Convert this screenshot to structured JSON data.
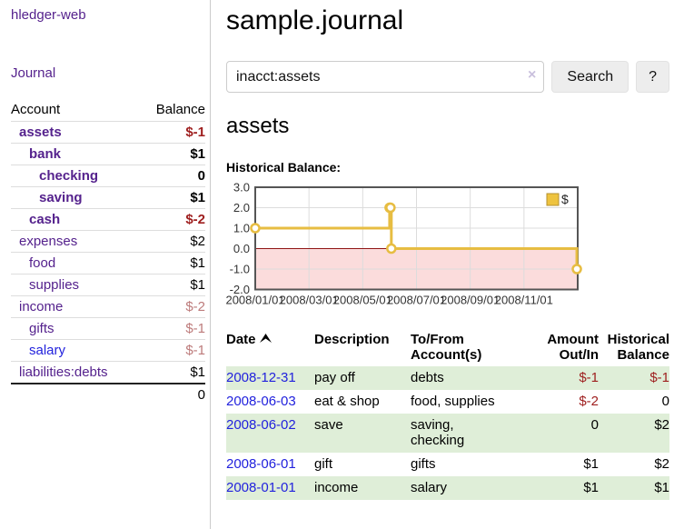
{
  "sidebar": {
    "app_title": "hledger-web",
    "journal_label": "Journal",
    "accounts_table": {
      "headers": [
        "Account",
        "Balance"
      ],
      "rows": [
        {
          "name": "assets",
          "indent": 0,
          "bold": true,
          "balance": "$-1",
          "balance_style": "negative-strong"
        },
        {
          "name": "bank",
          "indent": 1,
          "bold": true,
          "balance": "$1",
          "balance_style": "positive-strong"
        },
        {
          "name": "checking",
          "indent": 2,
          "bold": true,
          "balance": "0",
          "balance_style": "positive-strong"
        },
        {
          "name": "saving",
          "indent": 2,
          "bold": true,
          "balance": "$1",
          "balance_style": "positive-strong"
        },
        {
          "name": "cash",
          "indent": 1,
          "bold": true,
          "balance": "$-2",
          "balance_style": "negative-strong"
        },
        {
          "name": "expenses",
          "indent": 0,
          "bold": false,
          "balance": "$2",
          "balance_style": "positive"
        },
        {
          "name": "food",
          "indent": 1,
          "bold": false,
          "balance": "$1",
          "balance_style": "positive"
        },
        {
          "name": "supplies",
          "indent": 1,
          "bold": false,
          "balance": "$1",
          "balance_style": "positive"
        },
        {
          "name": "income",
          "indent": 0,
          "bold": false,
          "balance": "$-2",
          "balance_style": "negative-muted"
        },
        {
          "name": "gifts",
          "indent": 1,
          "bold": false,
          "balance": "$-1",
          "balance_style": "negative-muted"
        },
        {
          "name": "salary",
          "indent": 1,
          "bold": false,
          "link_color": "blue",
          "balance": "$-1",
          "balance_style": "negative-muted"
        },
        {
          "name": "liabilities:debts",
          "indent": 0,
          "bold": false,
          "balance": "$1",
          "balance_style": "positive"
        }
      ],
      "total": "0"
    }
  },
  "main": {
    "title": "sample.journal",
    "search": {
      "value": "inacct:assets",
      "clear_icon": "×",
      "button_label": "Search",
      "help_label": "?"
    },
    "account_heading": "assets",
    "register_table": {
      "headers": [
        {
          "label": "Date",
          "sortable": true,
          "sort_direction": "ascending",
          "align": "left"
        },
        {
          "label": "Description",
          "align": "left"
        },
        {
          "label": "To/From Account(s)",
          "align": "left"
        },
        {
          "label": "Amount Out/In",
          "align": "right"
        },
        {
          "label": "Historical Balance",
          "align": "right"
        }
      ],
      "rows": [
        {
          "date": "2008-12-31",
          "description": "pay off",
          "accounts": [
            "debts"
          ],
          "accounts_two_lines": false,
          "amount": "$-1",
          "amount_negative": true,
          "balance": "$-1",
          "balance_negative": true
        },
        {
          "date": "2008-06-03",
          "description": "eat & shop",
          "accounts": [
            "food",
            "supplies"
          ],
          "accounts_two_lines": false,
          "amount": "$-2",
          "amount_negative": true,
          "balance": "0",
          "balance_negative": false
        },
        {
          "date": "2008-06-02",
          "description": "save",
          "accounts": [
            "saving",
            "checking"
          ],
          "accounts_two_lines": true,
          "amount": "0",
          "amount_negative": false,
          "balance": "$2",
          "balance_negative": false
        },
        {
          "date": "2008-06-01",
          "description": "gift",
          "accounts": [
            "gifts"
          ],
          "accounts_two_lines": false,
          "amount": "$1",
          "amount_negative": false,
          "balance": "$2",
          "balance_negative": false
        },
        {
          "date": "2008-01-01",
          "description": "income",
          "accounts": [
            "salary"
          ],
          "accounts_two_lines": false,
          "amount": "$1",
          "amount_negative": false,
          "balance": "$1",
          "balance_negative": false
        }
      ]
    }
  },
  "chart_data": {
    "type": "line",
    "title": "Historical Balance:",
    "series": [
      {
        "name": "$",
        "step": true,
        "points": [
          [
            "2008-01-01",
            1
          ],
          [
            "2008-06-01",
            2
          ],
          [
            "2008-06-02",
            2
          ],
          [
            "2008-06-03",
            0
          ],
          [
            "2008-12-31",
            -1
          ]
        ]
      }
    ],
    "x_tick_labels": [
      "2008/01/01",
      "2008/03/01",
      "2008/05/01",
      "2008/07/01",
      "2008/09/01",
      "2008/11/01"
    ],
    "x_tick_months": [
      0,
      2,
      4,
      6,
      8,
      10
    ],
    "x_range_months": [
      0,
      12
    ],
    "y_ticks": [
      3.0,
      2.0,
      1.0,
      0.0,
      -1.0,
      -2.0
    ],
    "ylim": [
      -2,
      3
    ],
    "grid": true,
    "legend": {
      "label": "$",
      "position": "top-right"
    },
    "colors": {
      "line": "#e7bd42",
      "marker_fill": "#ffffff",
      "negative_region": "#fbdcdc",
      "zero_line": "#8f1414",
      "border": "#555555",
      "grid": "#dcdcdc",
      "legend_square": "#eec33f",
      "legend_square_border": "#b5922f"
    }
  },
  "colors": {
    "link_purple": "#55228d",
    "link_blue": "#2222dd",
    "negative_strong": "#9e1e1e",
    "negative_muted": "#bd7b7b",
    "row_stripe_green": "#dfeed8"
  }
}
